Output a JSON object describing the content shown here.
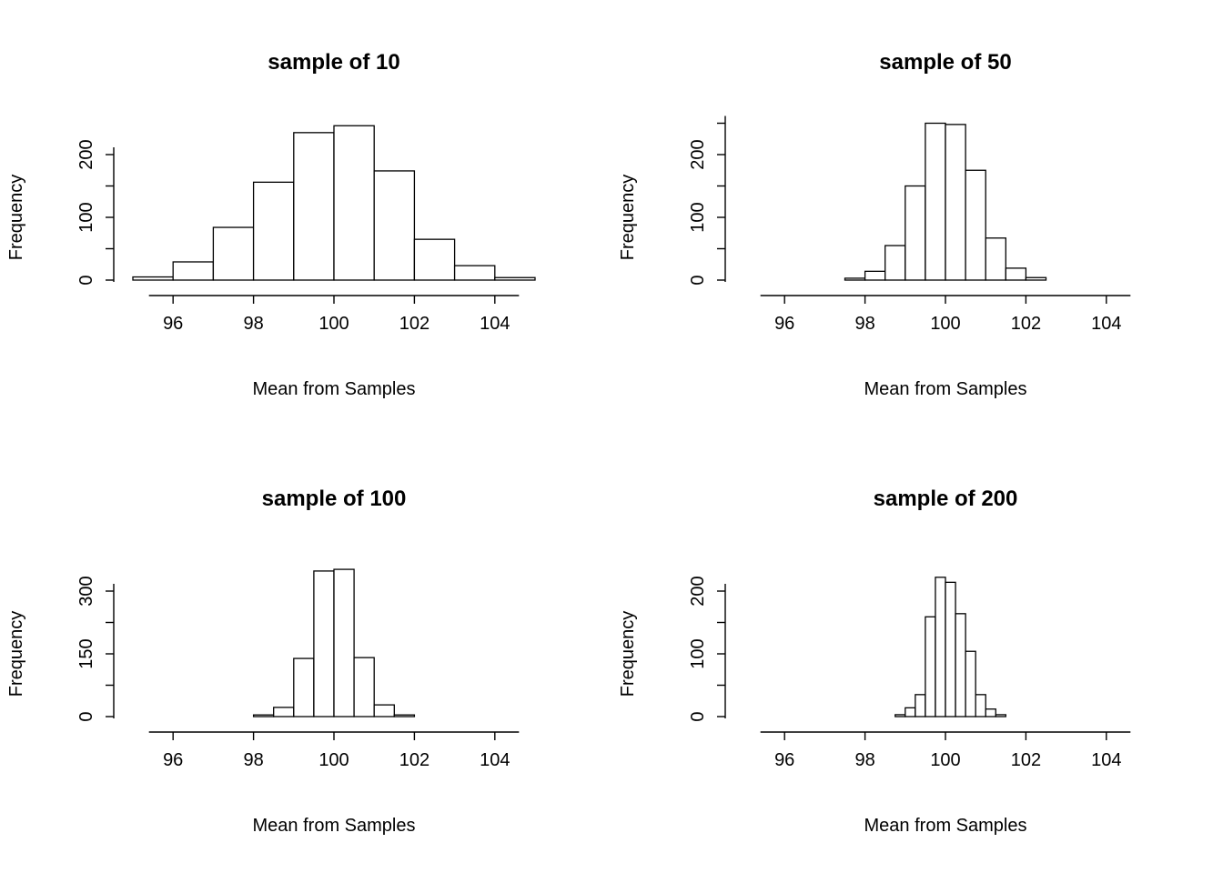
{
  "page": {
    "background": "#ffffff",
    "foreground": "#000000"
  },
  "chart_data": [
    {
      "type": "bar",
      "subtype": "histogram",
      "title": "sample of 10",
      "xlabel": "Mean from Samples",
      "ylabel": "Frequency",
      "xlim": [
        95,
        105
      ],
      "xticks": [
        96,
        98,
        100,
        102,
        104
      ],
      "yticks": [
        {
          "value": 0,
          "label": "0"
        },
        {
          "value": 50,
          "label": ""
        },
        {
          "value": 100,
          "label": "100"
        },
        {
          "value": 150,
          "label": ""
        },
        {
          "value": 200,
          "label": "200"
        }
      ],
      "bins": {
        "start": 95,
        "width": 1
      },
      "counts": [
        5,
        29,
        84,
        156,
        235,
        246,
        174,
        65,
        23,
        4
      ],
      "grid": false,
      "legend": false
    },
    {
      "type": "bar",
      "subtype": "histogram",
      "title": "sample of 50",
      "xlabel": "Mean from Samples",
      "ylabel": "Frequency",
      "xlim": [
        95,
        105
      ],
      "xticks": [
        96,
        98,
        100,
        102,
        104
      ],
      "yticks": [
        {
          "value": 0,
          "label": "0"
        },
        {
          "value": 50,
          "label": ""
        },
        {
          "value": 100,
          "label": "100"
        },
        {
          "value": 150,
          "label": ""
        },
        {
          "value": 200,
          "label": "200"
        },
        {
          "value": 250,
          "label": ""
        }
      ],
      "bins": {
        "start": 97.5,
        "width": 0.5
      },
      "counts": [
        3,
        14,
        55,
        150,
        250,
        248,
        175,
        67,
        19,
        4
      ],
      "grid": false,
      "legend": false
    },
    {
      "type": "bar",
      "subtype": "histogram",
      "title": "sample of 100",
      "xlabel": "Mean from Samples",
      "ylabel": "Frequency",
      "xlim": [
        95,
        105
      ],
      "xticks": [
        96,
        98,
        100,
        102,
        104
      ],
      "yticks": [
        {
          "value": 0,
          "label": "0"
        },
        {
          "value": 75,
          "label": ""
        },
        {
          "value": 150,
          "label": "150"
        },
        {
          "value": 225,
          "label": ""
        },
        {
          "value": 300,
          "label": "300"
        }
      ],
      "bins": {
        "start": 98,
        "width": 0.5
      },
      "counts": [
        4,
        22,
        139,
        348,
        352,
        141,
        28,
        4
      ],
      "grid": false,
      "legend": false
    },
    {
      "type": "bar",
      "subtype": "histogram",
      "title": "sample of 200",
      "xlabel": "Mean from Samples",
      "ylabel": "Frequency",
      "xlim": [
        95,
        105
      ],
      "xticks": [
        96,
        98,
        100,
        102,
        104
      ],
      "yticks": [
        {
          "value": 0,
          "label": "0"
        },
        {
          "value": 50,
          "label": ""
        },
        {
          "value": 100,
          "label": "100"
        },
        {
          "value": 150,
          "label": ""
        },
        {
          "value": 200,
          "label": "200"
        }
      ],
      "bins": {
        "start": 98.75,
        "width": 0.25
      },
      "counts": [
        3,
        14,
        35,
        159,
        222,
        214,
        164,
        104,
        35,
        12,
        3
      ],
      "grid": false,
      "legend": false
    }
  ]
}
